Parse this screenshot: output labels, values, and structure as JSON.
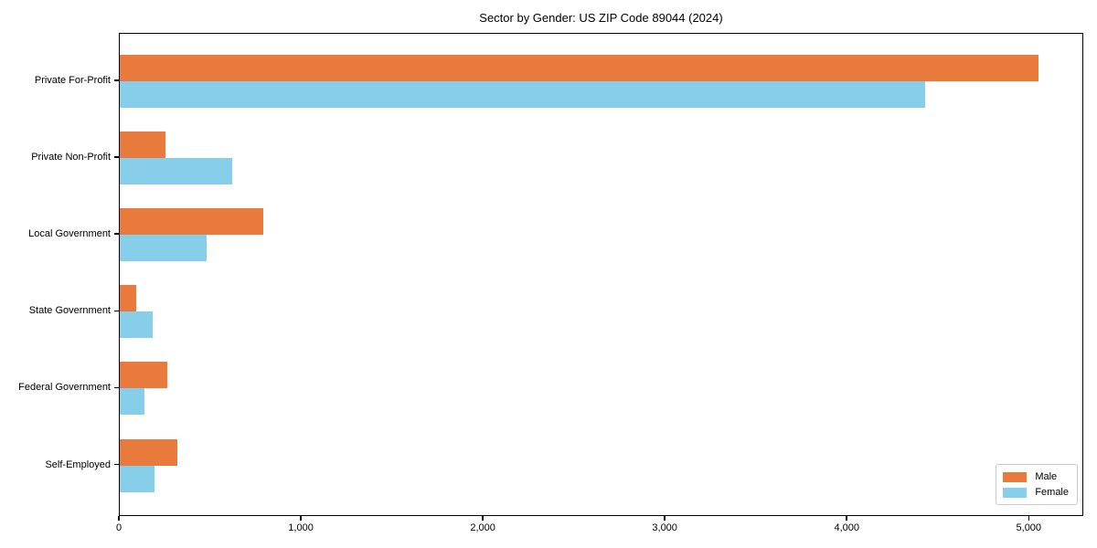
{
  "chart_data": {
    "type": "bar",
    "orientation": "horizontal",
    "title": "Sector by Gender: US ZIP Code 89044 (2024)",
    "categories": [
      "Private For-Profit",
      "Private Non-Profit",
      "Local Government",
      "State Government",
      "Federal Government",
      "Self-Employed"
    ],
    "series": [
      {
        "name": "Male",
        "color": "#E87A3C",
        "values": [
          5050,
          250,
          790,
          90,
          260,
          315
        ]
      },
      {
        "name": "Female",
        "color": "#87CEEB",
        "values": [
          4425,
          620,
          475,
          180,
          135,
          190
        ]
      }
    ],
    "xlabel": "",
    "ylabel": "",
    "xlim": [
      0,
      5300
    ],
    "xticks": [
      0,
      1000,
      2000,
      3000,
      4000,
      5000
    ],
    "xtick_labels": [
      "0",
      "1,000",
      "2,000",
      "3,000",
      "4,000",
      "5,000"
    ],
    "grid": false,
    "background": "#ffffff",
    "legend": {
      "position": "lower right",
      "entries": [
        "Male",
        "Female"
      ]
    }
  }
}
